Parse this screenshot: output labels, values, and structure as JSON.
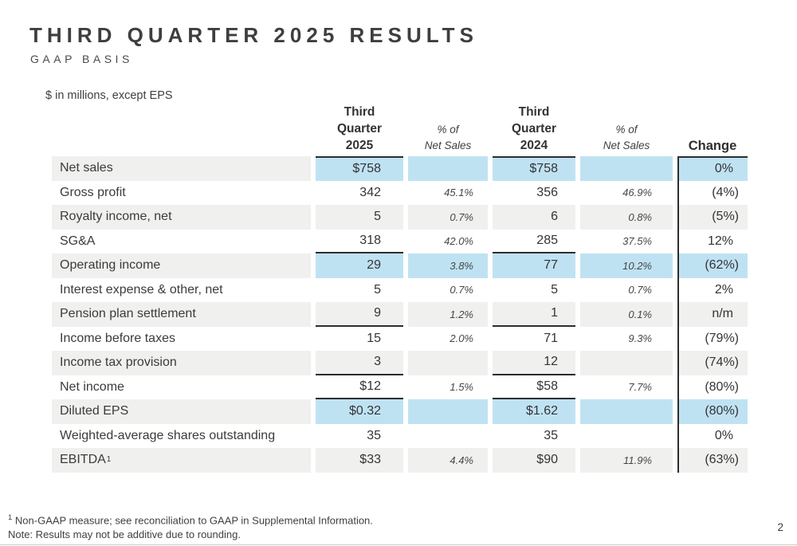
{
  "header": {
    "title": "THIRD QUARTER 2025 RESULTS",
    "subtitle": "GAAP BASIS"
  },
  "units_note": "$ in millions, except EPS",
  "table": {
    "column_headers": {
      "q3_2025": "Third\nQuarter\n2025",
      "pct_net_sales_2025": "% of\nNet Sales",
      "q3_2024": "Third\nQuarter\n2024",
      "pct_net_sales_2024": "% of\nNet Sales",
      "change": "Change"
    },
    "rows": [
      {
        "label": "Net sales",
        "q3_2025": "$758",
        "pct_2025": "",
        "q3_2024": "$758",
        "pct_2024": "",
        "change": "0%",
        "highlight": true,
        "top_border": true
      },
      {
        "label": "Gross profit",
        "q3_2025": "342",
        "pct_2025": "45.1%",
        "q3_2024": "356",
        "pct_2024": "46.9%",
        "change": "(4%)"
      },
      {
        "label": "Royalty income, net",
        "q3_2025": "5",
        "pct_2025": "0.7%",
        "q3_2024": "6",
        "pct_2024": "0.8%",
        "change": "(5%)"
      },
      {
        "label": "SG&A",
        "q3_2025": "318",
        "pct_2025": "42.0%",
        "q3_2024": "285",
        "pct_2024": "37.5%",
        "change": "12%",
        "underline": true
      },
      {
        "label": "Operating income",
        "q3_2025": "29",
        "pct_2025": "3.8%",
        "q3_2024": "77",
        "pct_2024": "10.2%",
        "change": "(62%)",
        "highlight": true
      },
      {
        "label": "Interest expense & other, net",
        "q3_2025": "5",
        "pct_2025": "0.7%",
        "q3_2024": "5",
        "pct_2024": "0.7%",
        "change": "2%"
      },
      {
        "label": "Pension plan settlement",
        "q3_2025": "9",
        "pct_2025": "1.2%",
        "q3_2024": "1",
        "pct_2024": "0.1%",
        "change": "n/m",
        "underline": true
      },
      {
        "label": "Income before taxes",
        "q3_2025": "15",
        "pct_2025": "2.0%",
        "q3_2024": "71",
        "pct_2024": "9.3%",
        "change": "(79%)"
      },
      {
        "label": "Income tax provision",
        "q3_2025": "3",
        "pct_2025": "",
        "q3_2024": "12",
        "pct_2024": "",
        "change": "(74%)",
        "underline": true
      },
      {
        "label": "Net income",
        "q3_2025": "$12",
        "pct_2025": "1.5%",
        "q3_2024": "$58",
        "pct_2024": "7.7%",
        "change": "(80%)",
        "underline": true
      },
      {
        "label": "Diluted EPS",
        "q3_2025": "$0.32",
        "pct_2025": "",
        "q3_2024": "$1.62",
        "pct_2024": "",
        "change": "(80%)",
        "highlight": true
      },
      {
        "label": "Weighted-average shares outstanding",
        "q3_2025": "35",
        "pct_2025": "",
        "q3_2024": "35",
        "pct_2024": "",
        "change": "0%"
      },
      {
        "label": "EBITDA",
        "label_sup": "1",
        "q3_2025": "$33",
        "pct_2025": "4.4%",
        "q3_2024": "$90",
        "pct_2024": "11.9%",
        "change": "(63%)"
      }
    ]
  },
  "footnotes": {
    "marker": "1",
    "footnote_text": "Non-GAAP measure; see reconciliation to GAAP in Supplemental Information.",
    "note_text": "Note: Results may not be additive due to rounding."
  },
  "page_number": "2",
  "colors": {
    "highlight_blue": "#bfe2f3",
    "stripe_gray": "#f0f0ef",
    "rule_dark": "#2d2d2d",
    "text_dark": "#3b3b3b"
  }
}
